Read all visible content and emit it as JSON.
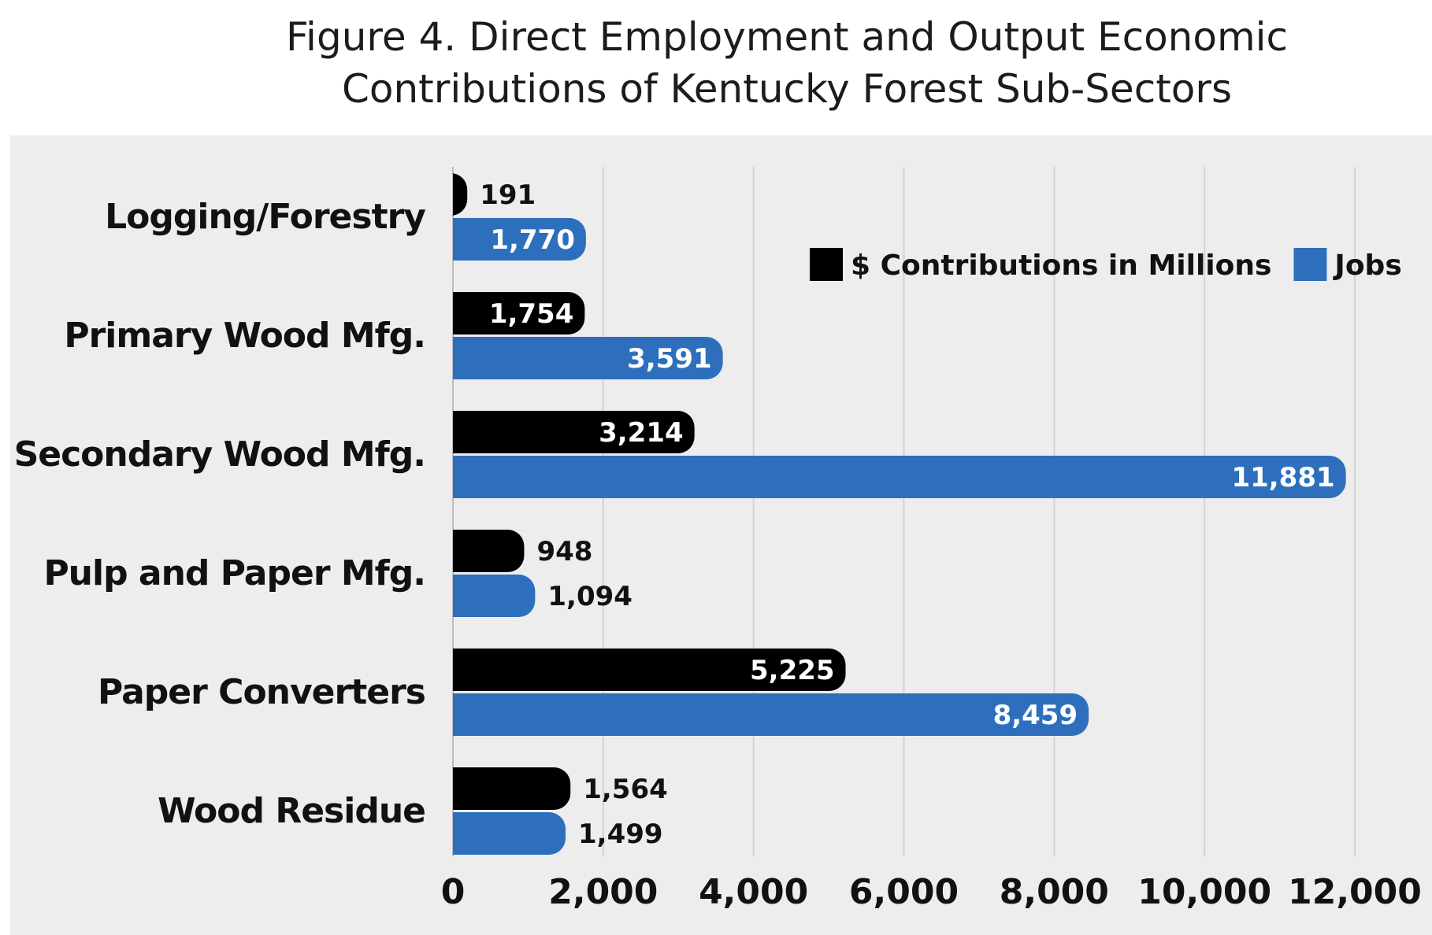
{
  "chart_data": {
    "type": "bar",
    "orientation": "horizontal",
    "title": "Figure 4. Direct Employment and Output Economic Contributions of Kentucky Forest Sub-Sectors",
    "title_lines": [
      "Figure 4. Direct Employment and Output Economic",
      "Contributions of Kentucky Forest Sub-Sectors"
    ],
    "categories": [
      "Logging/Forestry",
      "Primary Wood Mfg.",
      "Secondary Wood Mfg.",
      "Pulp and Paper Mfg.",
      "Paper Converters",
      "Wood Residue"
    ],
    "series": [
      {
        "name": "$ Contributions in Millions",
        "color": "#000000",
        "values": [
          191,
          1754,
          3214,
          948,
          5225,
          1564
        ],
        "labels": [
          "191",
          "1,754",
          "3,214",
          "948",
          "5,225",
          "1,564"
        ]
      },
      {
        "name": "Jobs",
        "color": "#2e6fbd",
        "values": [
          1770,
          3591,
          11881,
          1094,
          8459,
          1499
        ],
        "labels": [
          "1,770",
          "3,591",
          "11,881",
          "1,094",
          "8,459",
          "1,499"
        ]
      }
    ],
    "xlim": [
      0,
      12000
    ],
    "xticks": [
      0,
      2000,
      4000,
      6000,
      8000,
      10000,
      12000
    ],
    "xtick_labels": [
      "0",
      "2,000",
      "4,000",
      "6,000",
      "8,000",
      "10,000",
      "12,000"
    ],
    "xlabel": "",
    "ylabel": "",
    "grid": "vertical",
    "legend_position": "top-right"
  }
}
